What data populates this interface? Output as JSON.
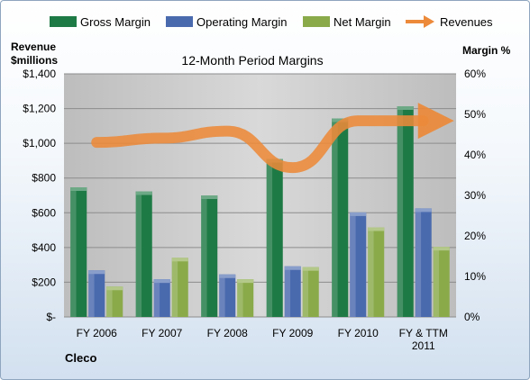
{
  "chart_data": {
    "type": "bar",
    "title": "12-Month Period Margins",
    "company": "Cleco",
    "ylabel_left": [
      "Revenue",
      "$millions"
    ],
    "ylabel_right": "Margin %",
    "categories": [
      "FY 2006",
      "FY 2007",
      "FY 2008",
      "FY 2009",
      "FY 2010",
      "FY & TTM 2011"
    ],
    "left_ticks": [
      "$-",
      "$200",
      "$400",
      "$600",
      "$800",
      "$1,000",
      "$1,200",
      "$1,400"
    ],
    "right_ticks": [
      "0%",
      "10%",
      "20%",
      "30%",
      "40%",
      "50%",
      "60%"
    ],
    "ylim_left": [
      0,
      1400
    ],
    "ylim_right": [
      0,
      60
    ],
    "series": [
      {
        "name": "Gross Margin",
        "type": "bar",
        "axis": "right",
        "color": "#1e7a45",
        "values": [
          32,
          31,
          30,
          39,
          49,
          52
        ]
      },
      {
        "name": "Operating Margin",
        "type": "bar",
        "axis": "right",
        "color": "#4a6aae",
        "values": [
          11.5,
          9.3,
          10.5,
          12.5,
          25.8,
          26.8
        ]
      },
      {
        "name": "Net Margin",
        "type": "bar",
        "axis": "right",
        "color": "#8aaa4a",
        "values": [
          7.5,
          14.6,
          9.3,
          12.3,
          22.1,
          17.3
        ]
      },
      {
        "name": "Revenues",
        "type": "line",
        "axis": "left",
        "color": "#ec8a3a",
        "values": [
          1005,
          1030,
          1070,
          860,
          1130,
          1130
        ]
      }
    ],
    "grid": true,
    "legend": "top"
  }
}
